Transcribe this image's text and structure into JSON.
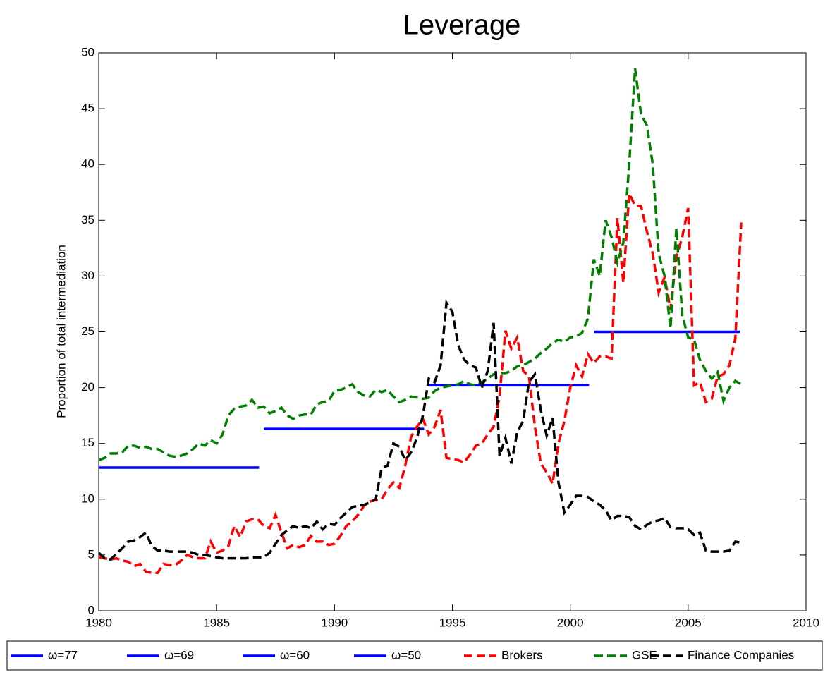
{
  "chart_data": {
    "type": "line",
    "title": "Leverage",
    "y_label": "Proportion of total intermediation",
    "xlim": [
      1980,
      2010
    ],
    "xticks": [
      1980,
      1985,
      1990,
      1995,
      2000,
      2005,
      2010
    ],
    "ylim": [
      0,
      50
    ],
    "yticks": [
      0,
      5,
      10,
      15,
      20,
      25,
      30,
      35,
      40,
      45,
      50
    ],
    "legend": "bottom",
    "x": [
      1980,
      1980.25,
      1980.5,
      1980.75,
      1981,
      1981.25,
      1981.5,
      1981.75,
      1982,
      1982.25,
      1982.5,
      1982.75,
      1983,
      1983.25,
      1983.5,
      1983.75,
      1984,
      1984.25,
      1984.5,
      1984.75,
      1985,
      1985.25,
      1985.5,
      1985.75,
      1986,
      1986.25,
      1986.5,
      1986.75,
      1987,
      1987.25,
      1987.5,
      1987.75,
      1988,
      1988.25,
      1988.5,
      1988.75,
      1989,
      1989.25,
      1989.5,
      1989.75,
      1990,
      1990.25,
      1990.5,
      1990.75,
      1991,
      1991.25,
      1991.5,
      1991.75,
      1992,
      1992.25,
      1992.5,
      1992.75,
      1993,
      1993.25,
      1993.5,
      1993.75,
      1994,
      1994.25,
      1994.5,
      1994.75,
      1995,
      1995.25,
      1995.5,
      1995.75,
      1996,
      1996.25,
      1996.5,
      1996.75,
      1997,
      1997.25,
      1997.5,
      1997.75,
      1998,
      1998.25,
      1998.5,
      1998.75,
      1999,
      1999.25,
      1999.5,
      1999.75,
      2000,
      2000.25,
      2000.5,
      2000.75,
      2001,
      2001.25,
      2001.5,
      2001.75,
      2002,
      2002.25,
      2002.5,
      2002.75,
      2003,
      2003.25,
      2003.5,
      2003.75,
      2004,
      2004.25,
      2004.5,
      2004.75,
      2005,
      2005.25,
      2005.5,
      2005.75,
      2006,
      2006.25,
      2006.5,
      2006.75,
      2007,
      2007.25
    ],
    "series": [
      {
        "name": "ω=77",
        "color": "#0000ff",
        "dashed": false,
        "x": [
          1980,
          1986.8
        ],
        "values": [
          12.83,
          12.83
        ]
      },
      {
        "name": "ω=69",
        "color": "#0000ff",
        "dashed": false,
        "x": [
          1987,
          1993.8
        ],
        "values": [
          16.3,
          16.3
        ]
      },
      {
        "name": "ω=60",
        "color": "#0000ff",
        "dashed": false,
        "x": [
          1994,
          2000.8
        ],
        "values": [
          20.2,
          20.2
        ]
      },
      {
        "name": "ω=50",
        "color": "#0000ff",
        "dashed": false,
        "x": [
          2001,
          2007.2
        ],
        "values": [
          25.0,
          25.0
        ]
      },
      {
        "name": "Brokers",
        "color": "#ff0000",
        "dashed": true,
        "values": [
          4.8,
          4.7,
          4.6,
          4.7,
          4.5,
          4.4,
          4.0,
          4.2,
          3.5,
          3.4,
          3.4,
          4.2,
          4.1,
          4.1,
          4.5,
          5.0,
          4.8,
          4.7,
          4.7,
          6.2,
          5.2,
          5.4,
          5.8,
          7.6,
          6.6,
          8.0,
          8.2,
          8.2,
          7.6,
          7.4,
          8.6,
          7.0,
          5.6,
          5.9,
          5.7,
          5.9,
          6.7,
          6.2,
          6.2,
          5.9,
          6.0,
          6.7,
          7.6,
          8.0,
          8.6,
          9.4,
          9.8,
          9.9,
          10.0,
          10.9,
          11.5,
          11.0,
          13.0,
          15.6,
          16.5,
          17.2,
          15.8,
          16.5,
          18.0,
          13.7,
          13.6,
          13.5,
          13.3,
          14.0,
          14.8,
          15.0,
          15.8,
          16.5,
          19.2,
          25.1,
          23.5,
          24.5,
          21.5,
          21.0,
          16.5,
          13.2,
          12.4,
          11.4,
          15.0,
          17.0,
          20.0,
          22.0,
          21.0,
          23.0,
          22.2,
          22.8,
          22.8,
          22.6,
          35.2,
          29.4,
          37.4,
          36.3,
          36.3,
          34.0,
          32.0,
          28.5,
          29.9,
          27.0,
          31.7,
          33.5,
          36.1,
          20.2,
          20.5,
          18.7,
          19.0,
          21.0,
          21.2,
          22.0,
          24.4,
          34.8
        ]
      },
      {
        "name": "GSE",
        "color": "#008000",
        "dashed": true,
        "values": [
          13.5,
          13.7,
          14.1,
          14.1,
          14.2,
          14.8,
          14.8,
          14.6,
          14.7,
          14.5,
          14.5,
          14.2,
          13.9,
          13.8,
          13.9,
          14.1,
          14.5,
          15.0,
          14.8,
          15.3,
          15.0,
          15.8,
          17.5,
          18.1,
          18.3,
          18.4,
          18.9,
          18.2,
          18.3,
          17.7,
          17.9,
          18.2,
          17.5,
          17.2,
          17.5,
          17.6,
          17.6,
          18.5,
          18.7,
          18.8,
          19.7,
          19.8,
          20.0,
          20.3,
          19.6,
          19.3,
          19.2,
          19.8,
          19.6,
          19.8,
          19.2,
          18.7,
          18.9,
          19.2,
          19.1,
          19.0,
          19.1,
          19.7,
          20.0,
          20.1,
          20.2,
          20.3,
          20.6,
          20.3,
          20.2,
          20.5,
          20.8,
          21.2,
          21.3,
          21.3,
          21.5,
          21.9,
          22.0,
          22.3,
          22.6,
          23.1,
          23.5,
          24.0,
          24.3,
          24.1,
          24.5,
          24.6,
          24.9,
          26.2,
          31.5,
          30.0,
          35.0,
          33.5,
          31.2,
          33.0,
          40.0,
          48.6,
          44.5,
          43.5,
          40.0,
          32.0,
          30.0,
          25.3,
          34.3,
          26.5,
          24.5,
          24.3,
          22.5,
          21.5,
          20.8,
          21.4,
          18.8,
          20.0,
          20.6,
          20.3
        ]
      },
      {
        "name": "Finance Companies",
        "color": "#000000",
        "dashed": true,
        "values": [
          5.2,
          4.7,
          4.6,
          5.1,
          5.6,
          6.2,
          6.3,
          6.6,
          7.0,
          5.8,
          5.4,
          5.4,
          5.3,
          5.3,
          5.3,
          5.3,
          5.2,
          5.0,
          5.0,
          4.9,
          4.8,
          4.7,
          4.7,
          4.7,
          4.7,
          4.7,
          4.8,
          4.8,
          4.8,
          5.2,
          6.0,
          6.8,
          7.2,
          7.6,
          7.4,
          7.6,
          7.4,
          8.0,
          7.3,
          7.8,
          7.7,
          8.3,
          8.8,
          9.3,
          9.4,
          9.5,
          9.7,
          10.0,
          12.8,
          13.0,
          15.0,
          14.7,
          13.5,
          14.2,
          15.5,
          17.5,
          20.8,
          20.5,
          22.0,
          27.6,
          26.8,
          23.8,
          22.5,
          22.0,
          21.8,
          20.0,
          21.5,
          25.8,
          13.9,
          15.5,
          13.2,
          16.0,
          17.0,
          20.5,
          21.2,
          18.0,
          15.7,
          17.3,
          11.5,
          8.8,
          9.5,
          10.3,
          10.3,
          10.2,
          9.8,
          9.5,
          9.0,
          8.1,
          8.5,
          8.5,
          8.4,
          7.6,
          7.3,
          7.7,
          8.0,
          8.1,
          8.3,
          7.5,
          7.4,
          7.4,
          7.3,
          6.8,
          7.0,
          5.4,
          5.3,
          5.3,
          5.3,
          5.4,
          6.2,
          6.1
        ]
      }
    ]
  }
}
